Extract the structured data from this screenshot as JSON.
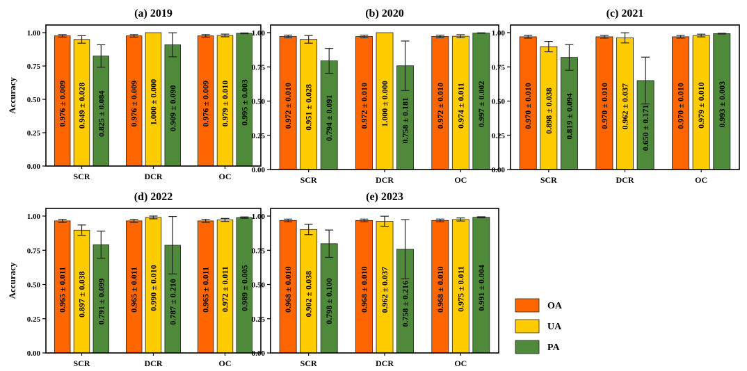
{
  "legend": [
    {
      "name": "OA",
      "color": "#ff6600"
    },
    {
      "name": "UA",
      "color": "#ffcc00"
    },
    {
      "name": "PA",
      "color": "#4e8a3a"
    }
  ],
  "chart_data": [
    {
      "type": "bar",
      "title": "(a) 2019",
      "ylabel": "Accuracy",
      "ylim": [
        0,
        1
      ],
      "yticks": [
        "0.00",
        "0.25",
        "0.50",
        "0.75",
        "1.00"
      ],
      "categories": [
        "SCR",
        "DCR",
        "OC"
      ],
      "series": [
        {
          "name": "OA",
          "values": [
            0.976,
            0.976,
            0.976
          ],
          "errors": [
            0.009,
            0.009,
            0.009
          ],
          "labels": [
            "0.976 ± 0.009",
            "0.976 ± 0.009",
            "0.976 ± 0.009"
          ]
        },
        {
          "name": "UA",
          "values": [
            0.949,
            1.0,
            0.979
          ],
          "errors": [
            0.028,
            0.0,
            0.01
          ],
          "labels": [
            "0.949 ± 0.028",
            "1.000 ± 0.000",
            "0.979 ± 0.010"
          ]
        },
        {
          "name": "PA",
          "values": [
            0.825,
            0.909,
            0.995
          ],
          "errors": [
            0.084,
            0.09,
            0.003
          ],
          "labels": [
            "0.825 ± 0.084",
            "0.909 ± 0.090",
            "0.995 ± 0.003"
          ]
        }
      ]
    },
    {
      "type": "bar",
      "title": "(b) 2020",
      "ylabel": "",
      "ylim": [
        0,
        1
      ],
      "yticks": [
        "0.00",
        "0.25",
        "0.50",
        "0.75",
        "1.00"
      ],
      "categories": [
        "SCR",
        "DCR",
        "OC"
      ],
      "series": [
        {
          "name": "OA",
          "values": [
            0.972,
            0.972,
            0.972
          ],
          "errors": [
            0.01,
            0.01,
            0.01
          ],
          "labels": [
            "0.972 ± 0.010",
            "0.972 ± 0.010",
            "0.972 ± 0.010"
          ]
        },
        {
          "name": "UA",
          "values": [
            0.951,
            1.0,
            0.974
          ],
          "errors": [
            0.028,
            0.0,
            0.011
          ],
          "labels": [
            "0.951 ± 0.028",
            "1.000 ± 0.000",
            "0.974 ± 0.011"
          ]
        },
        {
          "name": "PA",
          "values": [
            0.794,
            0.758,
            0.997
          ],
          "errors": [
            0.091,
            0.181,
            0.002
          ],
          "labels": [
            "0.794 ± 0.091",
            "0.758 ± 0.181",
            "0.997 ± 0.002"
          ]
        }
      ]
    },
    {
      "type": "bar",
      "title": "(c) 2021",
      "ylabel": "",
      "ylim": [
        0,
        1
      ],
      "yticks": [
        "0.00",
        "0.25",
        "0.50",
        "0.75",
        "1.00"
      ],
      "categories": [
        "SCR",
        "DCR",
        "OC"
      ],
      "series": [
        {
          "name": "OA",
          "values": [
            0.97,
            0.97,
            0.97
          ],
          "errors": [
            0.01,
            0.01,
            0.01
          ],
          "labels": [
            "0.970 ± 0.010",
            "0.970 ± 0.010",
            "0.970 ± 0.010"
          ]
        },
        {
          "name": "UA",
          "values": [
            0.898,
            0.962,
            0.979
          ],
          "errors": [
            0.038,
            0.037,
            0.01
          ],
          "labels": [
            "0.898 ± 0.038",
            "0.962 ± 0.037",
            "0.979 ± 0.010"
          ]
        },
        {
          "name": "PA",
          "values": [
            0.819,
            0.65,
            0.993
          ],
          "errors": [
            0.094,
            0.171,
            0.003
          ],
          "labels": [
            "0.819 ± 0.094",
            "0.650 ± 0.171",
            "0.993 ± 0.003"
          ]
        }
      ]
    },
    {
      "type": "bar",
      "title": "(d) 2022",
      "ylabel": "Accuracy",
      "ylim": [
        0,
        1
      ],
      "yticks": [
        "0.00",
        "0.25",
        "0.50",
        "0.75",
        "1.00"
      ],
      "categories": [
        "SCR",
        "DCR",
        "OC"
      ],
      "series": [
        {
          "name": "OA",
          "values": [
            0.965,
            0.965,
            0.965
          ],
          "errors": [
            0.011,
            0.011,
            0.011
          ],
          "labels": [
            "0.965 ± 0.011",
            "0.965 ± 0.011",
            "0.965 ± 0.011"
          ]
        },
        {
          "name": "UA",
          "values": [
            0.897,
            0.99,
            0.972
          ],
          "errors": [
            0.038,
            0.01,
            0.011
          ],
          "labels": [
            "0.897 ± 0.038",
            "0.990 ± 0.010",
            "0.972 ± 0.011"
          ]
        },
        {
          "name": "PA",
          "values": [
            0.791,
            0.787,
            0.989
          ],
          "errors": [
            0.099,
            0.21,
            0.005
          ],
          "labels": [
            "0.791 ± 0.099",
            "0.787 ± 0.210",
            "0.989 ± 0.005"
          ]
        }
      ]
    },
    {
      "type": "bar",
      "title": "(e) 2023",
      "ylabel": "",
      "ylim": [
        0,
        1
      ],
      "yticks": [
        "0.00",
        "0.25",
        "0.50",
        "0.75",
        "1.00"
      ],
      "categories": [
        "SCR",
        "DCR",
        "OC"
      ],
      "series": [
        {
          "name": "OA",
          "values": [
            0.968,
            0.968,
            0.968
          ],
          "errors": [
            0.01,
            0.01,
            0.01
          ],
          "labels": [
            "0.968 ± 0.010",
            "0.968 ± 0.010",
            "0.968 ± 0.010"
          ]
        },
        {
          "name": "UA",
          "values": [
            0.902,
            0.962,
            0.975
          ],
          "errors": [
            0.038,
            0.037,
            0.011
          ],
          "labels": [
            "0.902 ± 0.038",
            "0.962 ± 0.037",
            "0.975 ± 0.011"
          ]
        },
        {
          "name": "PA",
          "values": [
            0.798,
            0.758,
            0.991
          ],
          "errors": [
            0.1,
            0.216,
            0.004
          ],
          "labels": [
            "0.798 ± 0.100",
            "0.758 ± 0.216",
            "0.991 ± 0.004"
          ]
        }
      ]
    }
  ]
}
